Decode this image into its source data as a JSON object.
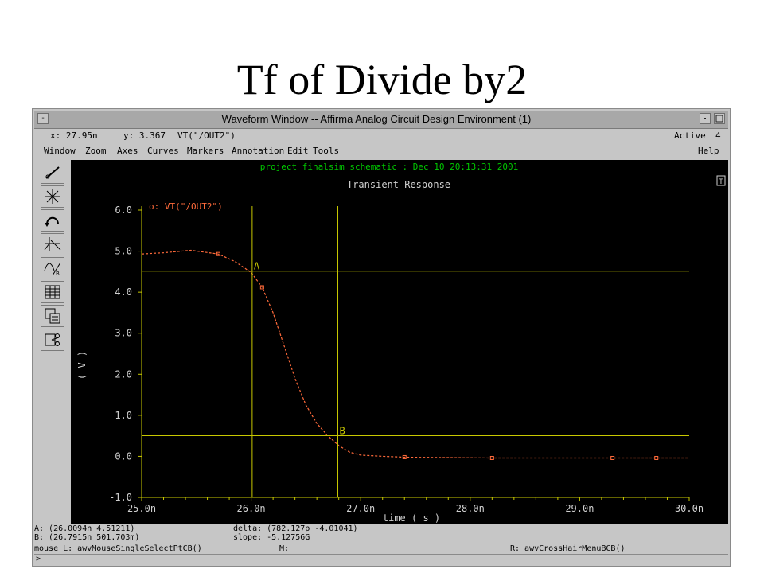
{
  "slide": {
    "title": "Tf of Divide by2"
  },
  "window": {
    "title": "Waveform Window -- Affirma Analog Circuit Design Environment (1)",
    "menu_button": "-",
    "status_left": "x: 27.95n",
    "status_y": "y: 3.367",
    "status_trace": "VT(\"/OUT2\")",
    "active_label": "Active",
    "active_count": "4"
  },
  "menubar": {
    "items": [
      "Window",
      "Zoom",
      "Axes",
      "Curves",
      "Markers",
      "Annotation",
      "Edit",
      "Tools"
    ],
    "help": "Help"
  },
  "toolbar": {
    "icons": [
      "pointer-icon",
      "crosshair-star-icon",
      "undo-arc-icon",
      "strip-split-icon",
      "curve-b-icon",
      "table-icon",
      "copy-graph-icon",
      "scissors-icon"
    ]
  },
  "plot": {
    "header": "project finalsim schematic : Dec 10 20:13:31 2001",
    "subtitle": "Transient Response",
    "corner": "T",
    "legend": "o: VT(\"/OUT2\")",
    "marker_a": "A",
    "marker_b": "B",
    "colors": {
      "axes": "#c8c800",
      "trace": "#ff6a3a",
      "header": "#00c800",
      "text": "#d0d0d0"
    }
  },
  "chart_data": {
    "type": "line",
    "title": "Transient Response",
    "xlabel": "time ( s )",
    "ylabel": "( V )",
    "xlim": [
      25.0,
      30.0
    ],
    "ylim": [
      -1.0,
      6.0
    ],
    "x_ticks": [
      "25.0n",
      "26.0n",
      "27.0n",
      "28.0n",
      "29.0n",
      "30.0n"
    ],
    "y_ticks": [
      "6.0",
      "5.0",
      "4.0",
      "3.0",
      "2.0",
      "1.0",
      "0.0",
      "-1.0"
    ],
    "series": [
      {
        "name": "VT(\"/OUT2\")",
        "x": [
          25.0,
          25.2,
          25.45,
          25.7,
          25.85,
          26.0,
          26.1,
          26.2,
          26.3,
          26.4,
          26.5,
          26.6,
          26.7,
          26.8,
          26.9,
          27.0,
          27.2,
          27.4,
          27.8,
          28.2,
          28.8,
          29.3,
          29.7,
          30.0
        ],
        "values": [
          4.93,
          4.96,
          5.02,
          4.93,
          4.75,
          4.48,
          4.12,
          3.5,
          2.7,
          1.9,
          1.25,
          0.8,
          0.5,
          0.26,
          0.1,
          0.03,
          0.0,
          -0.02,
          -0.03,
          -0.04,
          -0.04,
          -0.04,
          -0.04,
          -0.04
        ]
      }
    ],
    "markers": [
      {
        "label": "A",
        "x": 26.0094,
        "y": 4.51211
      },
      {
        "label": "B",
        "x": 26.7915,
        "y": 0.501703
      }
    ]
  },
  "status": {
    "a_line": "A: (26.0094n 4.51211)",
    "b_line": "B: (26.7915n 501.703m)",
    "delta": "delta: (782.127p -4.01041)",
    "slope": "slope: -5.12756G"
  },
  "mousebar": {
    "left": "mouse L: awvMouseSingleSelectPtCB()",
    "middle": "M:",
    "right": "R: awvCrossHairMenuBCB()"
  },
  "cmdline": {
    "prompt": ">"
  }
}
